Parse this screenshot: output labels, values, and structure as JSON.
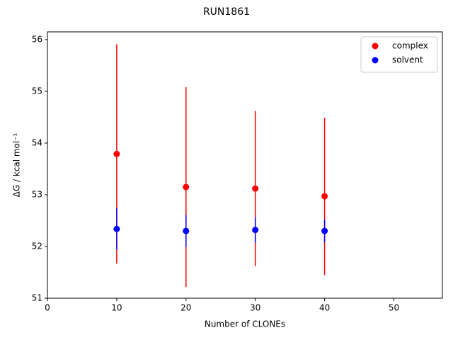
{
  "chart_data": {
    "type": "scatter",
    "title": "RUN1861",
    "x_label": "Number of CLONEs",
    "y_label": "ΔG / kcal mol⁻¹",
    "xlim": [
      0,
      57
    ],
    "ylim": [
      51,
      56.15
    ],
    "xticks": [
      0,
      10,
      20,
      30,
      40,
      50
    ],
    "yticks": [
      51,
      52,
      53,
      54,
      55,
      56
    ],
    "legend": "upper right",
    "series": [
      {
        "name": "complex",
        "color": "#ff0000",
        "x": [
          10,
          20,
          30,
          40
        ],
        "values": [
          53.79,
          53.15,
          53.12,
          52.97
        ],
        "errors": [
          2.12,
          1.93,
          1.5,
          1.52
        ]
      },
      {
        "name": "solvent",
        "color": "#0000ff",
        "x": [
          10,
          20,
          30,
          40
        ],
        "values": [
          52.34,
          52.3,
          52.32,
          52.3
        ],
        "errors": [
          0.4,
          0.31,
          0.25,
          0.22
        ]
      }
    ]
  }
}
